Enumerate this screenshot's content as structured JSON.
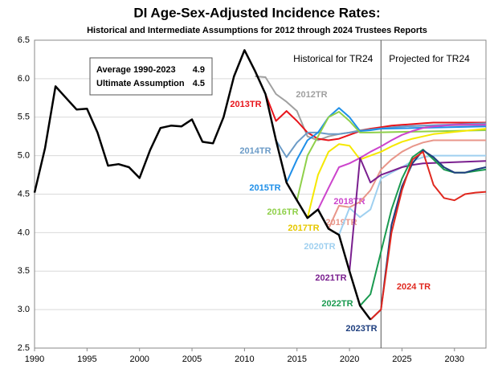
{
  "chart_data": {
    "type": "line",
    "title": "DI Age-Sex-Adjusted Incidence Rates:",
    "subtitle": "Historical and Intermediate Assumptions for 2012 through 2024 Trustees Reports",
    "region_labels": [
      "Historical for TR24",
      "Projected for TR24"
    ],
    "divider_x": 2023,
    "info_box": [
      {
        "label": "Average 1990-2023",
        "value": 4.9
      },
      {
        "label": "Ultimate Assumption",
        "value": 4.5
      }
    ],
    "xlim": [
      1990,
      2033
    ],
    "xticks": [
      1990,
      1995,
      2000,
      2005,
      2010,
      2015,
      2020,
      2025,
      2030
    ],
    "ylim": [
      2.5,
      6.5
    ],
    "yticks": [
      {
        "value": 2.5,
        "label": "2.5"
      },
      {
        "value": 3,
        "label": "3.0"
      },
      {
        "value": 3.5,
        "label": "3.5"
      },
      {
        "value": 4,
        "label": "4.0"
      },
      {
        "value": 4.5,
        "label": "4.5"
      },
      {
        "value": 5,
        "label": "5.0"
      },
      {
        "value": 5.5,
        "label": "5.5"
      },
      {
        "value": 6,
        "label": "6.0"
      },
      {
        "value": 6.5,
        "label": "6.5"
      }
    ],
    "grid": true,
    "series": [
      {
        "name": "2012TR",
        "color": "#a0a0a0",
        "x": [
          2011,
          2012,
          2013,
          2014,
          2015,
          2016,
          2017,
          2018,
          2019,
          2020,
          2021,
          2022,
          2023,
          2025,
          2028,
          2033
        ],
        "values": [
          6.03,
          6.02,
          5.8,
          5.7,
          5.58,
          5.25,
          5.2,
          5.25,
          5.28,
          5.3,
          5.33,
          5.35,
          5.36,
          5.38,
          5.39,
          5.4
        ]
      },
      {
        "name": "2013TR",
        "color": "#e8141b",
        "x": [
          2012,
          2013,
          2014,
          2015,
          2016,
          2017,
          2018,
          2019,
          2020,
          2021,
          2022,
          2023,
          2024,
          2025,
          2026,
          2027,
          2028,
          2033
        ],
        "values": [
          5.8,
          5.45,
          5.58,
          5.45,
          5.3,
          5.22,
          5.2,
          5.22,
          5.27,
          5.32,
          5.35,
          5.37,
          5.39,
          5.4,
          5.41,
          5.42,
          5.43,
          5.43
        ]
      },
      {
        "name": "2014TR",
        "color": "#6b9bc7",
        "x": [
          2013,
          2014,
          2015,
          2016,
          2017,
          2018,
          2019,
          2020,
          2021,
          2022,
          2025,
          2033
        ],
        "values": [
          5.2,
          4.98,
          5.17,
          5.3,
          5.3,
          5.28,
          5.28,
          5.3,
          5.32,
          5.34,
          5.38,
          5.42
        ]
      },
      {
        "name": "2015TR",
        "color": "#1f8fe8",
        "x": [
          2014,
          2015,
          2016,
          2017,
          2018,
          2019,
          2020,
          2021,
          2022,
          2023,
          2033
        ],
        "values": [
          4.65,
          4.95,
          5.2,
          5.3,
          5.5,
          5.62,
          5.5,
          5.32,
          5.33,
          5.35,
          5.38
        ]
      },
      {
        "name": "2016TR",
        "color": "#8fd04a",
        "x": [
          2015,
          2016,
          2017,
          2018,
          2019,
          2020,
          2021,
          2022,
          2033
        ],
        "values": [
          4.42,
          5.0,
          5.25,
          5.5,
          5.57,
          5.45,
          5.3,
          5.3,
          5.33
        ]
      },
      {
        "name": "2017TR",
        "color": "#f5e800",
        "x": [
          2016,
          2017,
          2018,
          2019,
          2020,
          2021,
          2022,
          2023,
          2024,
          2025,
          2026,
          2027,
          2028,
          2033
        ],
        "values": [
          4.19,
          4.75,
          5.05,
          5.15,
          5.13,
          4.95,
          5.0,
          5.05,
          5.12,
          5.18,
          5.22,
          5.25,
          5.28,
          5.35
        ]
      },
      {
        "name": "2018TR",
        "color": "#cc44cc",
        "x": [
          2017,
          2018,
          2019,
          2020,
          2021,
          2022,
          2023,
          2024,
          2025,
          2026,
          2027,
          2028,
          2030,
          2033
        ],
        "values": [
          4.3,
          4.58,
          4.85,
          4.9,
          4.97,
          5.05,
          5.12,
          5.2,
          5.27,
          5.32,
          5.36,
          5.38,
          5.4,
          5.4
        ]
      },
      {
        "name": "2019TR",
        "color": "#e8968a",
        "x": [
          2018,
          2019,
          2020,
          2021,
          2022,
          2023,
          2024,
          2025,
          2026,
          2027,
          2028,
          2033
        ],
        "values": [
          4.05,
          4.35,
          4.33,
          4.4,
          4.55,
          4.82,
          4.95,
          5.05,
          5.12,
          5.17,
          5.2,
          5.2
        ]
      },
      {
        "name": "2020TR",
        "color": "#9fd0f0",
        "x": [
          2019,
          2020,
          2021,
          2022,
          2023,
          2024,
          2025,
          2026,
          2027,
          2028,
          2033
        ],
        "values": [
          3.97,
          4.32,
          4.2,
          4.3,
          4.7,
          4.78,
          4.85,
          4.93,
          4.98,
          5.0,
          5.0
        ]
      },
      {
        "name": "2021TR",
        "color": "#7a1f8f",
        "x": [
          2020,
          2021,
          2022,
          2023,
          2024,
          2025,
          2026,
          2027,
          2033
        ],
        "values": [
          3.5,
          4.97,
          4.65,
          4.75,
          4.8,
          4.85,
          4.88,
          4.9,
          4.93
        ]
      },
      {
        "name": "2022TR",
        "color": "#1a9a50",
        "x": [
          2021,
          2022,
          2023,
          2024,
          2025,
          2026,
          2027,
          2028,
          2029,
          2030,
          2031,
          2032,
          2033
        ],
        "values": [
          3.05,
          3.2,
          3.75,
          4.3,
          4.7,
          4.98,
          5.08,
          4.95,
          4.82,
          4.78,
          4.78,
          4.8,
          4.82
        ]
      },
      {
        "name": "2023TR",
        "color": "#1f3f7f",
        "x": [
          2022,
          2023,
          2024,
          2025,
          2026,
          2027,
          2028,
          2029,
          2030,
          2031,
          2032,
          2033
        ],
        "values": [
          2.87,
          3.0,
          4.1,
          4.6,
          4.9,
          5.07,
          4.98,
          4.85,
          4.78,
          4.78,
          4.82,
          4.85
        ]
      },
      {
        "name": "2024 TR",
        "color": "#e0281f",
        "x": [
          2022,
          2023,
          2024,
          2025,
          2026,
          2027,
          2028,
          2029,
          2030,
          2031,
          2032,
          2033
        ],
        "values": [
          2.87,
          3.0,
          4.0,
          4.55,
          4.95,
          5.05,
          4.62,
          4.45,
          4.42,
          4.5,
          4.52,
          4.53
        ]
      },
      {
        "color": "#000000",
        "x": [
          1990,
          1991,
          1992,
          1993,
          1994,
          1995,
          1996,
          1997,
          1998,
          1999,
          2000,
          2001,
          2002,
          2003,
          2004,
          2005,
          2006,
          2007,
          2008,
          2009,
          2010,
          2011,
          2012,
          2013,
          2014,
          2015,
          2016,
          2017,
          2018,
          2019,
          2020,
          2021,
          2022
        ],
        "values": [
          4.52,
          5.1,
          5.9,
          5.75,
          5.6,
          5.61,
          5.3,
          4.87,
          4.89,
          4.85,
          4.71,
          5.07,
          5.36,
          5.39,
          5.38,
          5.47,
          5.18,
          5.16,
          5.5,
          6.03,
          6.37,
          6.1,
          5.8,
          5.2,
          4.65,
          4.42,
          4.19,
          4.3,
          4.05,
          3.97,
          3.5,
          3.05,
          2.87
        ]
      }
    ]
  }
}
